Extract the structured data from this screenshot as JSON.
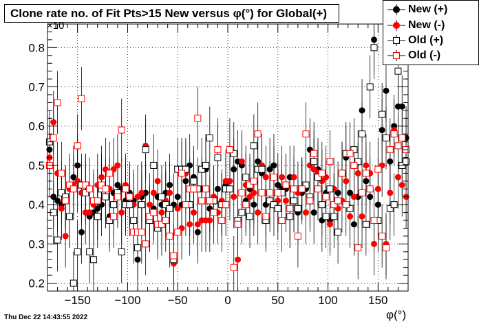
{
  "title": "Clone rate no. of Fit Pts>15 New versus φ(°) for Global(+)",
  "timestamp": "Thu Dec 22 14:43:55 2022",
  "legend": [
    {
      "label": "New (+)",
      "marker": "filled-circle",
      "color": "#000000"
    },
    {
      "label": "New (-)",
      "marker": "filled-circle",
      "color": "#ff0000"
    },
    {
      "label": "Old (+)",
      "marker": "open-square",
      "color": "#000000"
    },
    {
      "label": "Old (-)",
      "marker": "open-square",
      "color": "#ff0000"
    }
  ],
  "chart_data": {
    "type": "scatter",
    "title": "Clone rate no. of Fit Pts>15 New versus φ(°) for Global(+)",
    "xlabel": "φ(°)",
    "ylabel": "",
    "y_exponent_label": "×10",
    "xlim": [
      -180,
      180
    ],
    "ylim": [
      0.18,
      0.86
    ],
    "xticks": [
      -150,
      -100,
      -50,
      0,
      50,
      100,
      150
    ],
    "xtick_labels": [
      "−150",
      "−100",
      "−50",
      "0",
      "50",
      "100",
      "150"
    ],
    "yticks": [
      0.2,
      0.3,
      0.4,
      0.5,
      0.6,
      0.7,
      0.8
    ],
    "ytick_labels": [
      "0.2",
      "0.3",
      "0.4",
      "0.5",
      "0.6",
      "0.7",
      "0.8"
    ],
    "grid": true,
    "legend_position": "top-right",
    "bin_width": 4,
    "error_half_width": 0.08,
    "x": [
      -178,
      -174,
      -170,
      -166,
      -162,
      -158,
      -154,
      -150,
      -146,
      -142,
      -138,
      -134,
      -130,
      -126,
      -122,
      -118,
      -114,
      -110,
      -106,
      -102,
      -98,
      -94,
      -90,
      -86,
      -82,
      -78,
      -74,
      -70,
      -66,
      -62,
      -58,
      -54,
      -50,
      -46,
      -42,
      -38,
      -34,
      -30,
      -26,
      -22,
      -18,
      -14,
      -10,
      -6,
      -2,
      2,
      6,
      10,
      14,
      18,
      22,
      26,
      30,
      34,
      38,
      42,
      46,
      50,
      54,
      58,
      62,
      66,
      70,
      74,
      78,
      82,
      86,
      90,
      94,
      98,
      102,
      106,
      110,
      114,
      118,
      122,
      126,
      130,
      134,
      138,
      142,
      146,
      150,
      154,
      158,
      162,
      166,
      170,
      174,
      178
    ],
    "series": [
      {
        "name": "New (+)",
        "marker": "filled-circle",
        "color": "#000000",
        "values": [
          0.54,
          0.42,
          0.41,
          0.4,
          0.42,
          0.37,
          0.47,
          0.5,
          0.33,
          0.45,
          0.37,
          0.38,
          0.39,
          0.4,
          0.42,
          0.37,
          0.43,
          0.45,
          0.44,
          0.41,
          0.43,
          0.41,
          0.26,
          0.42,
          0.43,
          0.36,
          0.39,
          0.42,
          0.4,
          0.43,
          0.45,
          0.4,
          0.42,
          0.4,
          0.46,
          0.5,
          0.47,
          0.33,
          0.44,
          0.49,
          0.39,
          0.42,
          0.44,
          0.4,
          0.45,
          0.46,
          0.49,
          0.51,
          0.5,
          0.41,
          0.44,
          0.4,
          0.51,
          0.48,
          0.4,
          0.49,
          0.5,
          0.45,
          0.44,
          0.44,
          0.47,
          0.41,
          0.38,
          0.43,
          0.44,
          0.54,
          0.38,
          0.49,
          0.36,
          0.43,
          0.36,
          0.4,
          0.43,
          0.48,
          0.52,
          0.43,
          0.35,
          0.42,
          0.64,
          0.46,
          0.42,
          0.82,
          0.4,
          0.59,
          0.69,
          0.51,
          0.6,
          0.65,
          0.65,
          0.57
        ]
      },
      {
        "name": "New (-)",
        "marker": "filled-circle",
        "color": "#ff0000",
        "values": [
          0.52,
          0.61,
          0.48,
          0.39,
          0.32,
          0.44,
          0.45,
          0.46,
          0.43,
          0.38,
          0.38,
          0.4,
          0.45,
          0.47,
          0.49,
          0.44,
          0.49,
          0.5,
          0.38,
          0.45,
          0.42,
          0.4,
          0.42,
          0.43,
          0.55,
          0.4,
          0.43,
          0.46,
          0.38,
          0.41,
          0.43,
          0.25,
          0.39,
          0.34,
          0.48,
          0.35,
          0.38,
          0.35,
          0.36,
          0.36,
          0.36,
          0.42,
          0.38,
          0.41,
          0.46,
          0.46,
          0.42,
          0.26,
          0.51,
          0.45,
          0.42,
          0.43,
          0.38,
          0.5,
          0.47,
          0.43,
          0.47,
          0.41,
          0.47,
          0.41,
          0.37,
          0.47,
          0.43,
          0.44,
          0.38,
          0.5,
          0.49,
          0.48,
          0.46,
          0.47,
          0.35,
          0.44,
          0.39,
          0.41,
          0.46,
          0.37,
          0.42,
          0.48,
          0.37,
          0.5,
          0.48,
          0.3,
          0.44,
          0.5,
          0.3,
          0.43,
          0.59,
          0.47,
          0.45,
          0.42
        ]
      },
      {
        "name": "Old (+)",
        "marker": "open-square",
        "color": "#000000",
        "values": [
          0.56,
          0.38,
          0.31,
          0.43,
          0.42,
          0.37,
          0.2,
          0.28,
          0.45,
          0.43,
          0.28,
          0.26,
          0.37,
          0.44,
          0.42,
          0.36,
          0.4,
          0.43,
          0.28,
          0.4,
          0.4,
          0.36,
          0.29,
          0.4,
          0.54,
          0.36,
          0.5,
          0.34,
          0.42,
          0.4,
          0.39,
          0.26,
          0.49,
          0.49,
          0.49,
          0.4,
          0.46,
          0.44,
          0.49,
          0.5,
          0.57,
          0.41,
          0.52,
          0.4,
          0.44,
          0.44,
          0.53,
          0.36,
          0.38,
          0.47,
          0.37,
          0.55,
          0.49,
          0.49,
          0.36,
          0.41,
          0.4,
          0.39,
          0.43,
          0.45,
          0.37,
          0.41,
          0.39,
          0.44,
          0.45,
          0.42,
          0.51,
          0.47,
          0.4,
          0.37,
          0.44,
          0.37,
          0.33,
          0.48,
          0.53,
          0.39,
          0.54,
          0.51,
          0.58,
          0.35,
          0.7,
          0.8,
          0.36,
          0.63,
          0.57,
          0.39,
          0.4,
          0.74,
          0.5,
          0.51
        ]
      },
      {
        "name": "Old (-)",
        "marker": "open-square",
        "color": "#ff0000",
        "values": [
          0.5,
          0.57,
          0.66,
          0.48,
          0.41,
          0.45,
          0.44,
          0.55,
          0.67,
          0.45,
          0.44,
          0.41,
          0.41,
          0.45,
          0.44,
          0.48,
          0.37,
          0.42,
          0.59,
          0.44,
          0.42,
          0.33,
          0.33,
          0.33,
          0.3,
          0.37,
          0.38,
          0.35,
          0.35,
          0.36,
          0.32,
          0.27,
          0.33,
          0.48,
          0.4,
          0.44,
          0.44,
          0.62,
          0.41,
          0.44,
          0.41,
          0.38,
          0.54,
          0.36,
          0.4,
          0.54,
          0.24,
          0.35,
          0.43,
          0.4,
          0.45,
          0.46,
          0.58,
          0.43,
          0.37,
          0.43,
          0.47,
          0.43,
          0.36,
          0.45,
          0.39,
          0.44,
          0.32,
          0.44,
          0.58,
          0.41,
          0.53,
          0.44,
          0.48,
          0.42,
          0.51,
          0.4,
          0.41,
          0.48,
          0.4,
          0.53,
          0.5,
          0.29,
          0.43,
          0.48,
          0.44,
          0.36,
          0.49,
          0.32,
          0.29,
          0.54,
          0.58,
          0.55,
          0.57,
          0.54
        ]
      }
    ]
  }
}
